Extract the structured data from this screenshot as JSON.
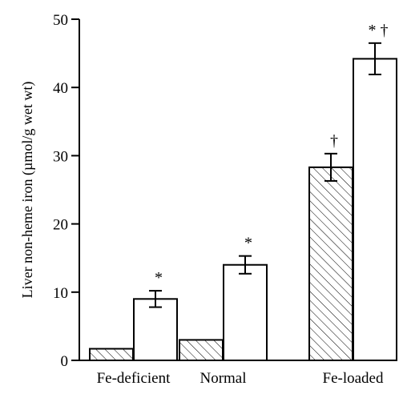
{
  "chart_data": {
    "type": "bar",
    "ylabel": "Liver non-heme iron (µmol/g wet wt)",
    "xlabel": "",
    "ylim": [
      0,
      50
    ],
    "yticks": [
      0,
      10,
      20,
      30,
      40,
      50
    ],
    "grid": false,
    "legend": "none",
    "categories": [
      "Fe-deficient",
      "Normal",
      "Fe-loaded"
    ],
    "series": [
      {
        "style": "hatched",
        "values": [
          1.7,
          3.0,
          28.3
        ],
        "errors": [
          null,
          null,
          2.0
        ],
        "annotations": [
          "",
          "",
          "†"
        ]
      },
      {
        "style": "open",
        "values": [
          9.0,
          14.0,
          44.2
        ],
        "errors": [
          1.2,
          1.3,
          2.3
        ],
        "annotations": [
          "*",
          "*",
          "* †"
        ]
      }
    ]
  }
}
